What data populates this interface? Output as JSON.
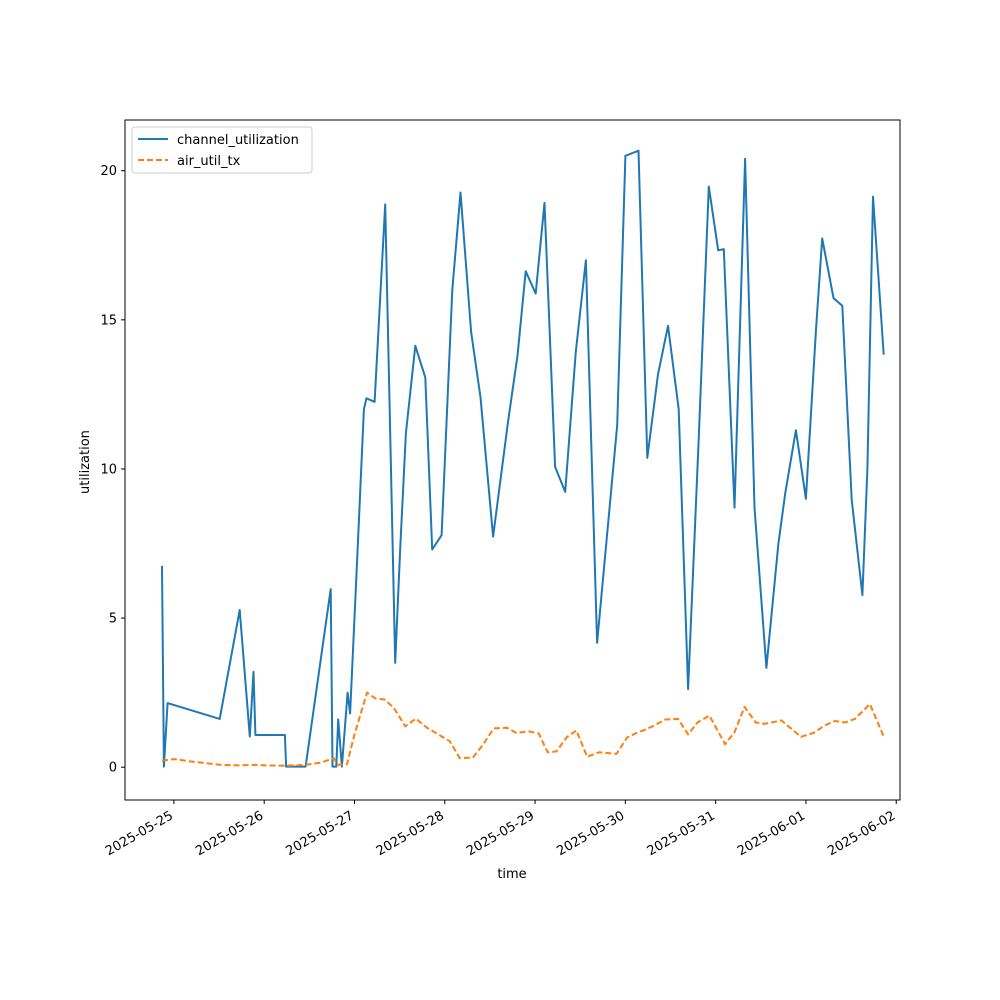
{
  "chart_data": {
    "type": "line",
    "xlabel": "time",
    "ylabel": "utilization",
    "ylim": [
      -1.1,
      21.7
    ],
    "xlim": [
      "2025-05-24T11:00",
      "2025-06-02T01:00"
    ],
    "x_ticks": [
      "2025-05-25",
      "2025-05-26",
      "2025-05-27",
      "2025-05-28",
      "2025-05-29",
      "2025-05-30",
      "2025-05-31",
      "2025-06-01",
      "2025-06-02"
    ],
    "y_ticks": [
      0,
      5,
      10,
      15,
      20
    ],
    "grid": false,
    "legend_position": "upper-left",
    "series": [
      {
        "name": "channel_utilization",
        "color": "#1f77b4",
        "dash": "solid",
        "points": [
          [
            "2025-05-24T20:50",
            6.75
          ],
          [
            "2025-05-24T21:20",
            0.02
          ],
          [
            "2025-05-24T22:20",
            2.15
          ],
          [
            "2025-05-25T12:10",
            1.62
          ],
          [
            "2025-05-25T17:30",
            5.27
          ],
          [
            "2025-05-25T20:10",
            1.03
          ],
          [
            "2025-05-25T21:10",
            3.2
          ],
          [
            "2025-05-25T21:40",
            1.08
          ],
          [
            "2025-05-26T05:30",
            1.08
          ],
          [
            "2025-05-26T05:50",
            0.02
          ],
          [
            "2025-05-26T11:00",
            0.02
          ],
          [
            "2025-05-26T17:40",
            5.97
          ],
          [
            "2025-05-26T18:10",
            0.02
          ],
          [
            "2025-05-26T19:10",
            0.02
          ],
          [
            "2025-05-26T19:40",
            1.6
          ],
          [
            "2025-05-26T20:40",
            0.02
          ],
          [
            "2025-05-26T22:10",
            2.5
          ],
          [
            "2025-05-26T22:50",
            1.8
          ],
          [
            "2025-05-27T00:30",
            6.4
          ],
          [
            "2025-05-27T02:30",
            12.0
          ],
          [
            "2025-05-27T03:10",
            12.37
          ],
          [
            "2025-05-27T05:20",
            12.25
          ],
          [
            "2025-05-27T08:10",
            18.87
          ],
          [
            "2025-05-27T10:50",
            3.5
          ],
          [
            "2025-05-27T12:10",
            7.4
          ],
          [
            "2025-05-27T13:40",
            11.2
          ],
          [
            "2025-05-27T16:10",
            14.13
          ],
          [
            "2025-05-27T18:50",
            13.07
          ],
          [
            "2025-05-27T20:40",
            7.3
          ],
          [
            "2025-05-27T23:10",
            7.78
          ],
          [
            "2025-05-28T02:00",
            16.0
          ],
          [
            "2025-05-28T04:10",
            19.27
          ],
          [
            "2025-05-28T07:00",
            14.6
          ],
          [
            "2025-05-28T09:30",
            12.4
          ],
          [
            "2025-05-28T12:50",
            7.73
          ],
          [
            "2025-05-28T16:50",
            11.6
          ],
          [
            "2025-05-28T19:20",
            13.8
          ],
          [
            "2025-05-28T21:30",
            16.63
          ],
          [
            "2025-05-29T00:10",
            15.88
          ],
          [
            "2025-05-29T02:30",
            18.92
          ],
          [
            "2025-05-29T05:20",
            10.07
          ],
          [
            "2025-05-29T08:00",
            9.23
          ],
          [
            "2025-05-29T10:50",
            13.93
          ],
          [
            "2025-05-29T13:30",
            17.0
          ],
          [
            "2025-05-29T16:30",
            4.17
          ],
          [
            "2025-05-29T21:50",
            11.47
          ],
          [
            "2025-05-30T00:00",
            20.5
          ],
          [
            "2025-05-30T03:30",
            20.67
          ],
          [
            "2025-05-30T05:50",
            10.37
          ],
          [
            "2025-05-30T08:40",
            13.17
          ],
          [
            "2025-05-30T11:20",
            14.8
          ],
          [
            "2025-05-30T14:10",
            12.0
          ],
          [
            "2025-05-30T16:40",
            2.62
          ],
          [
            "2025-05-30T19:30",
            11.0
          ],
          [
            "2025-05-30T22:10",
            19.47
          ],
          [
            "2025-05-31T00:40",
            17.33
          ],
          [
            "2025-05-31T02:10",
            17.37
          ],
          [
            "2025-05-31T05:00",
            8.7
          ],
          [
            "2025-05-31T07:50",
            20.4
          ],
          [
            "2025-05-31T10:20",
            8.7
          ],
          [
            "2025-05-31T13:30",
            3.33
          ],
          [
            "2025-05-31T16:40",
            7.5
          ],
          [
            "2025-05-31T18:30",
            9.2
          ],
          [
            "2025-05-31T21:20",
            11.3
          ],
          [
            "2025-06-01T00:00",
            9.0
          ],
          [
            "2025-06-01T02:40",
            14.67
          ],
          [
            "2025-06-01T04:20",
            17.73
          ],
          [
            "2025-06-01T07:20",
            15.73
          ],
          [
            "2025-06-01T09:40",
            15.47
          ],
          [
            "2025-06-01T12:10",
            8.97
          ],
          [
            "2025-06-01T15:00",
            5.77
          ],
          [
            "2025-06-01T16:20",
            10.0
          ],
          [
            "2025-06-01T17:50",
            19.13
          ],
          [
            "2025-06-01T20:40",
            13.83
          ]
        ]
      },
      {
        "name": "air_util_tx",
        "color": "#ff7f0e",
        "dash": "dashed",
        "points": [
          [
            "2025-05-24T20:50",
            0.22
          ],
          [
            "2025-05-25T00:10",
            0.27
          ],
          [
            "2025-05-25T04:00",
            0.2
          ],
          [
            "2025-05-25T12:10",
            0.08
          ],
          [
            "2025-05-25T17:30",
            0.06
          ],
          [
            "2025-05-25T21:40",
            0.08
          ],
          [
            "2025-05-26T00:00",
            0.06
          ],
          [
            "2025-05-26T06:00",
            0.05
          ],
          [
            "2025-05-26T11:00",
            0.08
          ],
          [
            "2025-05-26T15:00",
            0.15
          ],
          [
            "2025-05-26T18:30",
            0.3
          ],
          [
            "2025-05-26T19:30",
            0.08
          ],
          [
            "2025-05-26T22:00",
            0.1
          ],
          [
            "2025-05-27T00:00",
            1.1
          ],
          [
            "2025-05-27T03:20",
            2.5
          ],
          [
            "2025-05-27T05:40",
            2.3
          ],
          [
            "2025-05-27T08:00",
            2.27
          ],
          [
            "2025-05-27T10:30",
            1.98
          ],
          [
            "2025-05-27T13:30",
            1.37
          ],
          [
            "2025-05-27T16:20",
            1.63
          ],
          [
            "2025-05-27T19:10",
            1.33
          ],
          [
            "2025-05-27T22:00",
            1.12
          ],
          [
            "2025-05-28T01:20",
            0.87
          ],
          [
            "2025-05-28T04:00",
            0.3
          ],
          [
            "2025-05-28T07:30",
            0.33
          ],
          [
            "2025-05-28T10:00",
            0.73
          ],
          [
            "2025-05-28T13:00",
            1.3
          ],
          [
            "2025-05-28T16:30",
            1.32
          ],
          [
            "2025-05-28T19:00",
            1.15
          ],
          [
            "2025-05-28T22:20",
            1.2
          ],
          [
            "2025-05-29T01:00",
            1.13
          ],
          [
            "2025-05-29T03:20",
            0.5
          ],
          [
            "2025-05-29T05:40",
            0.53
          ],
          [
            "2025-05-29T08:30",
            1.02
          ],
          [
            "2025-05-29T11:00",
            1.23
          ],
          [
            "2025-05-29T13:50",
            0.35
          ],
          [
            "2025-05-29T17:00",
            0.5
          ],
          [
            "2025-05-29T21:40",
            0.45
          ],
          [
            "2025-05-30T00:30",
            1.0
          ],
          [
            "2025-05-30T03:00",
            1.15
          ],
          [
            "2025-05-30T05:30",
            1.27
          ],
          [
            "2025-05-30T08:00",
            1.42
          ],
          [
            "2025-05-30T10:40",
            1.6
          ],
          [
            "2025-05-30T14:00",
            1.62
          ],
          [
            "2025-05-30T16:40",
            1.1
          ],
          [
            "2025-05-30T19:10",
            1.5
          ],
          [
            "2025-05-30T22:20",
            1.73
          ],
          [
            "2025-05-31T02:30",
            0.77
          ],
          [
            "2025-05-31T05:00",
            1.17
          ],
          [
            "2025-05-31T07:40",
            2.02
          ],
          [
            "2025-05-31T10:40",
            1.5
          ],
          [
            "2025-05-31T13:00",
            1.45
          ],
          [
            "2025-05-31T17:30",
            1.57
          ],
          [
            "2025-05-31T20:00",
            1.3
          ],
          [
            "2025-05-31T22:40",
            1.02
          ],
          [
            "2025-06-01T02:00",
            1.15
          ],
          [
            "2025-06-01T05:00",
            1.4
          ],
          [
            "2025-06-01T07:40",
            1.55
          ],
          [
            "2025-06-01T10:20",
            1.5
          ],
          [
            "2025-06-01T13:00",
            1.62
          ],
          [
            "2025-06-01T17:00",
            2.12
          ],
          [
            "2025-06-01T20:40",
            1.03
          ]
        ]
      }
    ]
  }
}
